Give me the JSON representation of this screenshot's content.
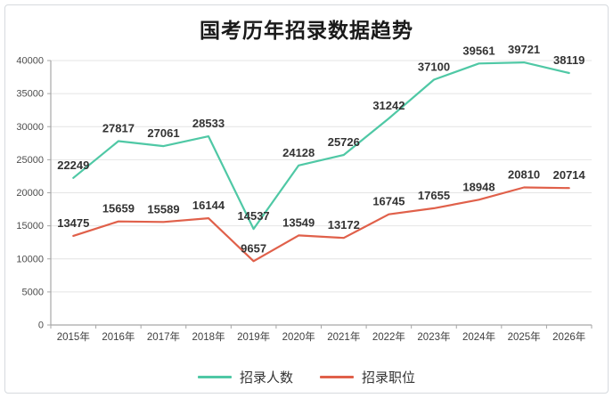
{
  "chart_data": {
    "type": "line",
    "title": "国考历年招录数据趋势",
    "categories": [
      "2015年",
      "2016年",
      "2017年",
      "2018年",
      "2019年",
      "2020年",
      "2021年",
      "2022年",
      "2023年",
      "2024年",
      "2025年",
      "2026年"
    ],
    "series": [
      {
        "name": "招录人数",
        "color": "#4fc8a5",
        "values": [
          22249,
          27817,
          27061,
          28533,
          14537,
          24128,
          25726,
          31242,
          37100,
          39561,
          39721,
          38119
        ]
      },
      {
        "name": "招录职位",
        "color": "#e0604a",
        "values": [
          13475,
          15659,
          15589,
          16144,
          9657,
          13549,
          13172,
          16745,
          17655,
          18948,
          20810,
          20714
        ]
      }
    ],
    "ylim": [
      0,
      40000
    ],
    "ytick_step": 5000,
    "yticks": [
      0,
      5000,
      10000,
      15000,
      20000,
      25000,
      30000,
      35000,
      40000
    ],
    "grid": true,
    "legend_position": "bottom",
    "colors": {
      "grid": "#e4e4e4",
      "axis": "#a6a6a6",
      "tick_label": "#4d4d4d",
      "data_label": "#333333",
      "background": "#ffffff",
      "frame_border": "#d6dade"
    }
  }
}
